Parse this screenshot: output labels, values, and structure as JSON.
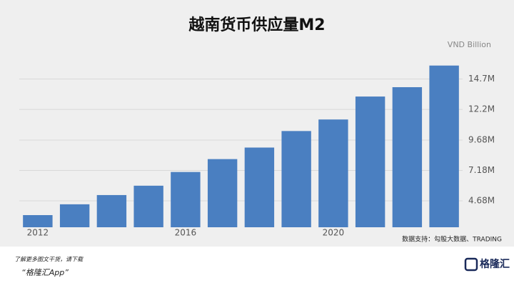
{
  "chart_data": {
    "type": "bar",
    "title": "越南货币供应量M2",
    "unit_label": "VND Billion",
    "categories": [
      "2012",
      null,
      null,
      null,
      "2016",
      null,
      null,
      null,
      "2020",
      null,
      null,
      null
    ],
    "values": [
      3500000,
      4390000,
      5150000,
      5920000,
      7050000,
      8110000,
      9060000,
      10420000,
      11370000,
      13260000,
      14030000,
      15810000
    ],
    "color": "#4a7fc1",
    "ylim": [
      2500000,
      16500000
    ],
    "yticks": [
      {
        "value": 4680000,
        "label": "4.68M"
      },
      {
        "value": 7180000,
        "label": "7.18M"
      },
      {
        "value": 9680000,
        "label": "9.68M"
      },
      {
        "value": 12200000,
        "label": "12.2M"
      },
      {
        "value": 14700000,
        "label": "14.7M"
      }
    ],
    "grid": true,
    "source": "数据支持：勾股大数据、TRADING"
  },
  "footer": {
    "line1": "了解更多图文干货，请下载",
    "line2": "“格隆汇App”",
    "logo": "格隆汇"
  }
}
